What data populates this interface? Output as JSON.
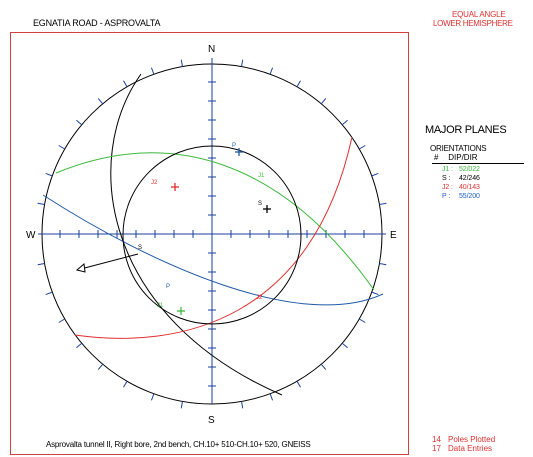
{
  "header": {
    "title": "EGNATIA ROAD - ASPROVALTA",
    "projection_line1": "EQUAL ANGLE",
    "projection_line2": "LOWER HEMISPHERE"
  },
  "net": {
    "directions": {
      "north": "N",
      "south": "S",
      "east": "E",
      "west": "W"
    },
    "plot_labels": {
      "pole_P": "P",
      "pole_J2": "J2",
      "pole_S": "S",
      "pole_J1": "J1",
      "plane_P": "P",
      "plane_S": "S",
      "plane_J1": "J1",
      "plane_J2": "J2"
    }
  },
  "legend": {
    "heading": "MAJOR PLANES",
    "sub_heading": "ORIENTATIONS",
    "col_num": "#",
    "col_dipdir": "DIP/DIR",
    "rows": [
      {
        "label": "J1 :",
        "value": "52/022",
        "color": "#3cb83c"
      },
      {
        "label": "S :",
        "value": "42/246",
        "color": "#000000"
      },
      {
        "label": "J2 :",
        "value": "40/143",
        "color": "#e03030"
      },
      {
        "label": "P :",
        "value": "55/200",
        "color": "#2060d0"
      }
    ]
  },
  "footer": {
    "caption": "Asprovalta tunnel II, Right bore, 2nd bench, CH.10+ 510-CH.10+ 520, GNEISS",
    "poles_count": "14",
    "poles_label": "Poles Plotted",
    "entries_count": "17",
    "entries_label": "Data Entries"
  },
  "colors": {
    "frame": "#d04040",
    "axis": "#1a3f9e",
    "green": "#3cb83c",
    "red": "#e03030",
    "blue": "#1f5aa8",
    "black": "#000000"
  }
}
